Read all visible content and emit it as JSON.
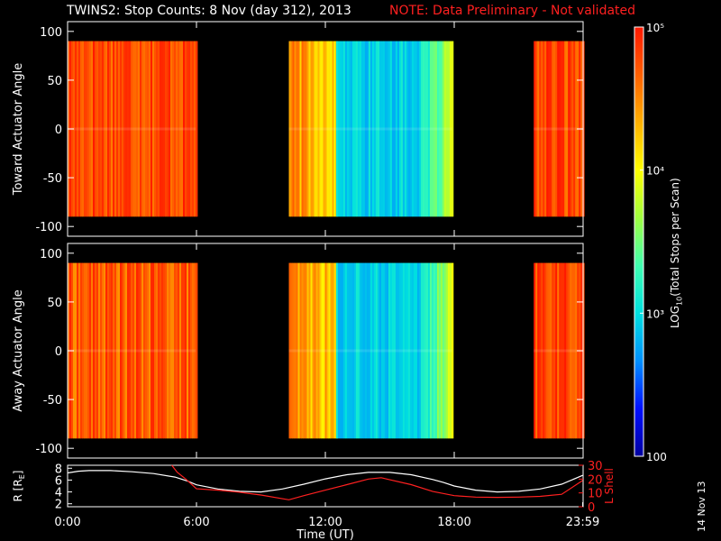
{
  "header": {
    "title": "TWINS2: Stop Counts:  8 Nov (day 312), 2013",
    "note": "NOTE: Data Preliminary - Not validated"
  },
  "stamp": "14 Nov 13",
  "colors": {
    "background": "#000000",
    "axis": "#ffffff",
    "note": "#ff2020",
    "r_line": "#ffffff",
    "lshell_line": "#ff2020"
  },
  "colorbar": {
    "label_prefix": "LOG",
    "label_sub": "10",
    "label_suffix": "(Total Stops per Scan)",
    "scale": "log",
    "ticks": [
      {
        "value": 100,
        "label": "100"
      },
      {
        "value": 1000,
        "label": "10³"
      },
      {
        "value": 10000,
        "label": "10⁴"
      },
      {
        "value": 100000,
        "label": "10⁵"
      }
    ],
    "range": [
      100,
      100000
    ],
    "colormap": [
      "#0000a0",
      "#0010ff",
      "#0090ff",
      "#00e0e0",
      "#40ffb0",
      "#a0ff40",
      "#ffff00",
      "#ffb000",
      "#ff6000",
      "#ff1800"
    ]
  },
  "chart_data": [
    {
      "type": "heatmap",
      "ylabel": "Toward Actuator Angle",
      "ylim": [
        -110,
        110
      ],
      "yticks": [
        100,
        50,
        0,
        -50,
        -100
      ],
      "xlim": [
        0,
        24
      ],
      "data_y_range": [
        -90,
        90
      ],
      "segments": [
        {
          "start": 0.0,
          "end": 5.97,
          "level": "high",
          "approx_log10": 4.8
        },
        {
          "start": 10.3,
          "end": 12.5,
          "level": "medium-high",
          "approx_log10": 4.3
        },
        {
          "start": 12.5,
          "end": 17.9,
          "level": "low",
          "approx_log10": 3.1
        },
        {
          "start": 21.7,
          "end": 23.98,
          "level": "high",
          "approx_log10": 4.8
        }
      ]
    },
    {
      "type": "heatmap",
      "ylabel": "Away Actuator Angle",
      "ylim": [
        -110,
        110
      ],
      "yticks": [
        100,
        50,
        0,
        -50,
        -100
      ],
      "xlim": [
        0,
        24
      ],
      "data_y_range": [
        -90,
        90
      ],
      "segments": [
        {
          "start": 0.0,
          "end": 5.97,
          "level": "high",
          "approx_log10": 4.7
        },
        {
          "start": 10.3,
          "end": 12.5,
          "level": "medium-high",
          "approx_log10": 4.3
        },
        {
          "start": 12.5,
          "end": 17.9,
          "level": "low",
          "approx_log10": 3.1
        },
        {
          "start": 21.7,
          "end": 23.98,
          "level": "high",
          "approx_log10": 4.8
        }
      ]
    },
    {
      "type": "line",
      "xlabel": "Time (UT)",
      "xticks": [
        {
          "value": 0,
          "label": "0:00"
        },
        {
          "value": 6,
          "label": "6:00"
        },
        {
          "value": 12,
          "label": "12:00"
        },
        {
          "value": 18,
          "label": "18:00"
        },
        {
          "value": 23.98,
          "label": "23:59"
        }
      ],
      "xlim": [
        0,
        24
      ],
      "left_axis": {
        "label": "R [R",
        "label_sub": "E",
        "label_end": "]",
        "ylim": [
          1.5,
          8.5
        ],
        "ticks": [
          8,
          6,
          4,
          2
        ]
      },
      "right_axis": {
        "label": "L Shell",
        "ylim": [
          0,
          30
        ],
        "ticks": [
          30,
          20,
          10,
          0
        ],
        "tick_labels": [
          "30",
          "20",
          "10",
          "0"
        ]
      },
      "series": [
        {
          "axis": "left",
          "x": [
            0,
            0.5,
            1,
            2,
            3,
            4,
            5,
            5.6,
            6,
            7,
            8,
            9,
            10,
            11,
            12,
            13,
            14,
            15,
            16,
            17,
            17.5,
            18,
            19,
            20,
            21,
            22,
            23,
            23.98
          ],
          "y": [
            7.2,
            7.5,
            7.6,
            7.6,
            7.4,
            7.1,
            6.5,
            5.8,
            5.2,
            4.5,
            4.1,
            4.0,
            4.5,
            5.3,
            6.2,
            6.9,
            7.3,
            7.3,
            6.9,
            6.1,
            5.6,
            5.0,
            4.3,
            4.0,
            4.1,
            4.5,
            5.3,
            6.8
          ]
        },
        {
          "axis": "right",
          "x": [
            4.85,
            5.1,
            5.5,
            6.0,
            7,
            8,
            9,
            10.3,
            11,
            12,
            13,
            14,
            14.6,
            15,
            16,
            17,
            18,
            19,
            20,
            21,
            22,
            23,
            23.98
          ],
          "y": [
            30,
            25,
            20,
            13,
            12,
            10.5,
            8.5,
            5,
            8,
            12,
            16,
            20,
            21,
            19.5,
            16,
            11,
            8,
            7,
            6.8,
            7,
            7.5,
            9,
            19
          ]
        }
      ]
    }
  ]
}
